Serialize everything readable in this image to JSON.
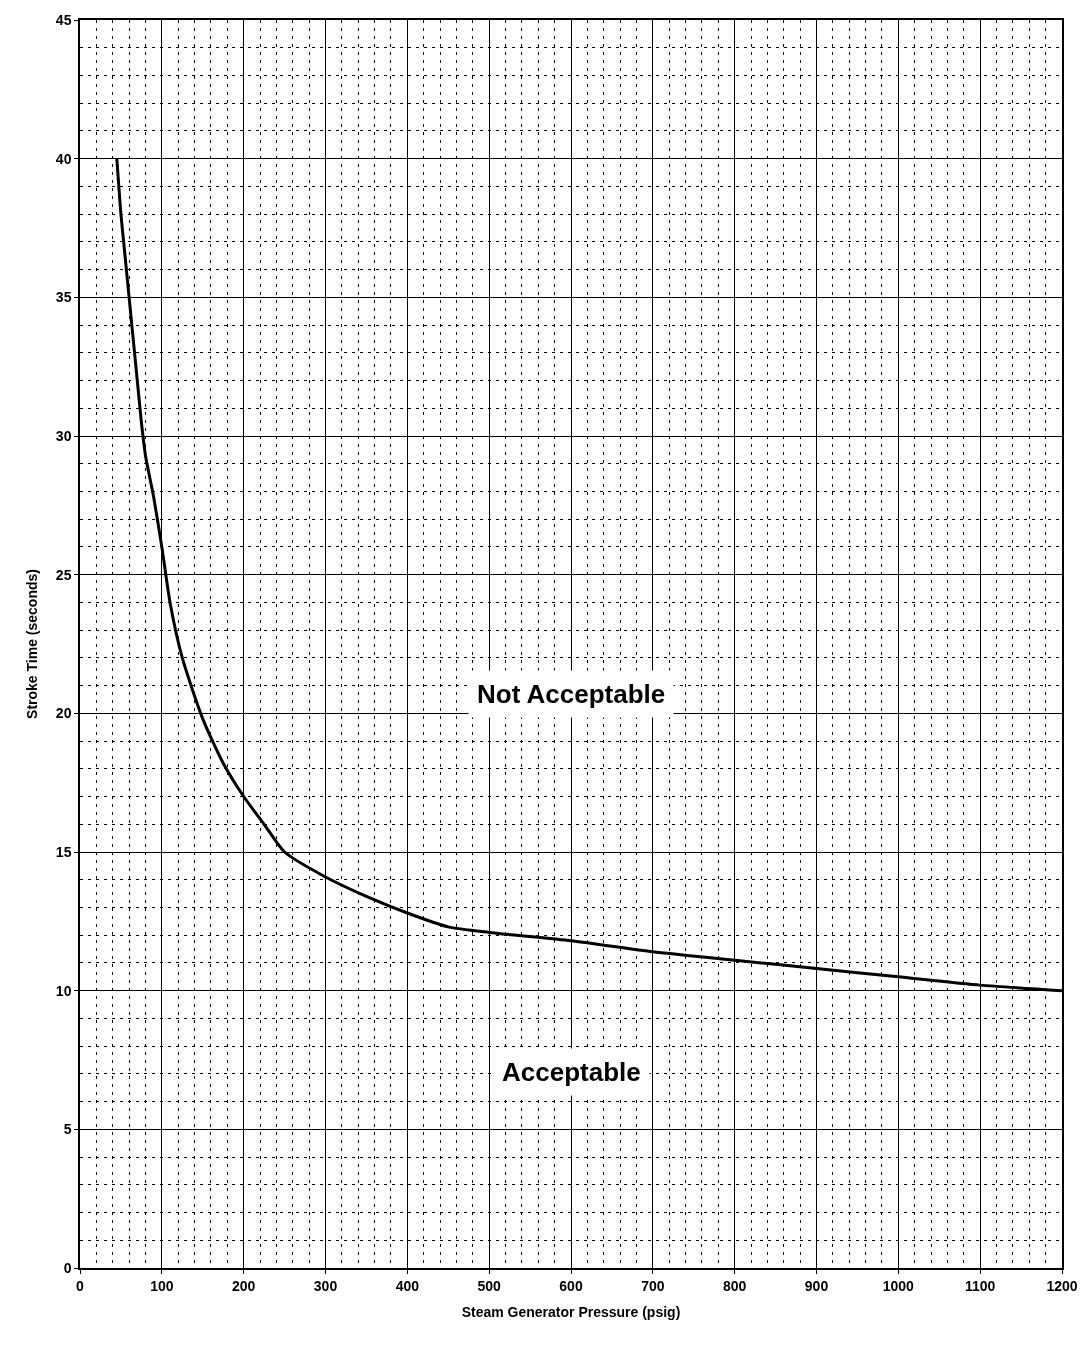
{
  "chart_data": {
    "type": "line",
    "xlabel": "Steam Generator Pressure (psig)",
    "ylabel": "Stroke Time (seconds)",
    "x": [
      45,
      50,
      55,
      60,
      70,
      75,
      80,
      90,
      100,
      110,
      125,
      150,
      175,
      200,
      225,
      250,
      300,
      350,
      400,
      450,
      500,
      600,
      700,
      800,
      900,
      1000,
      1100,
      1200
    ],
    "series": [
      {
        "color": "#000000",
        "values": [
          40,
          38,
          36.5,
          35,
          32,
          30.5,
          29.3,
          27.8,
          26,
          24,
          22,
          19.8,
          18.2,
          17,
          16,
          15,
          14.1,
          13.4,
          12.8,
          12.3,
          12.1,
          11.8,
          11.4,
          11.1,
          10.8,
          10.5,
          10.2,
          10
        ]
      }
    ],
    "xlim": [
      0,
      1200
    ],
    "ylim": [
      0,
      45
    ],
    "xticks": [
      0,
      100,
      200,
      300,
      400,
      500,
      600,
      700,
      800,
      900,
      1000,
      1100,
      1200
    ],
    "yticks": [
      0,
      5,
      10,
      15,
      20,
      25,
      30,
      35,
      40,
      45
    ],
    "grid": true,
    "marker": "none",
    "line_style": "solid",
    "annotations": [
      "Not Acceptable",
      "Acceptable"
    ]
  }
}
